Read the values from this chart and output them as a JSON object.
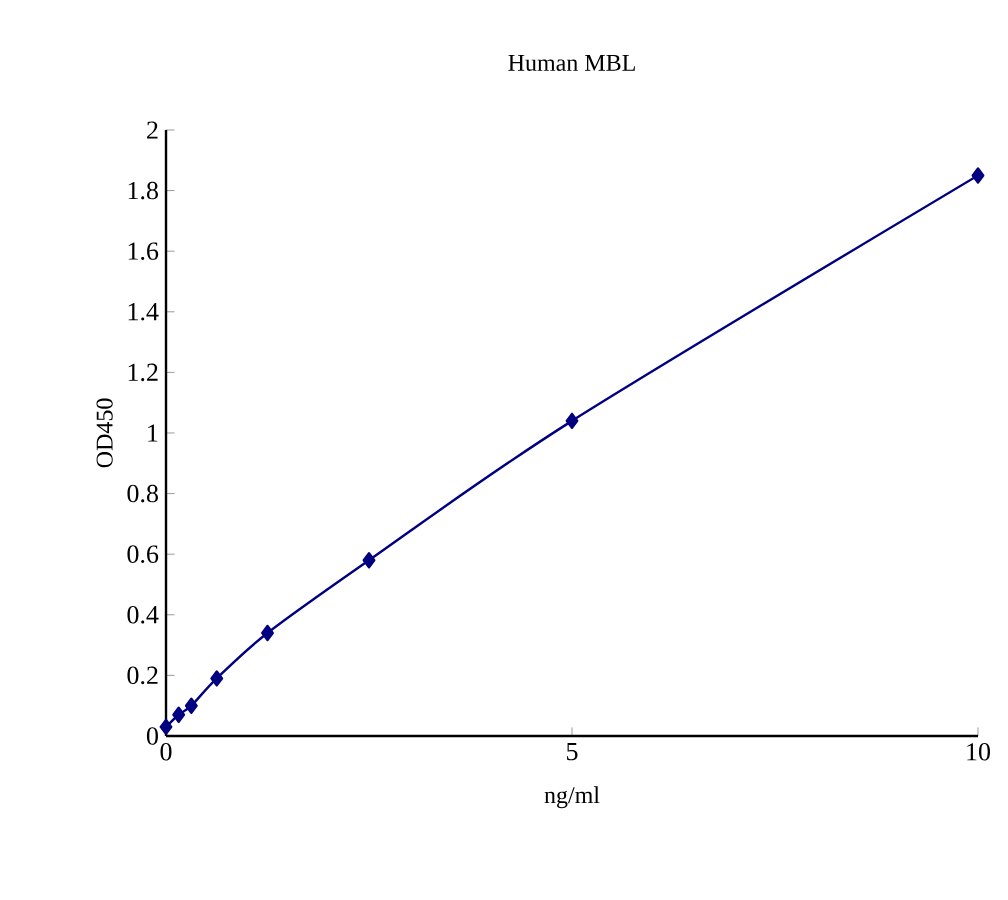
{
  "chart_data": {
    "type": "line",
    "title": "Human MBL",
    "xlabel": "ng/ml",
    "ylabel": "OD450",
    "x": [
      0,
      0.156,
      0.312,
      0.625,
      1.25,
      2.5,
      5,
      10
    ],
    "series": [
      {
        "color": "#000080",
        "values": [
          0.03,
          0.07,
          0.1,
          0.19,
          0.34,
          0.58,
          1.04,
          1.85
        ]
      }
    ],
    "xlim": [
      0,
      10
    ],
    "xticks": [
      0,
      5,
      10
    ],
    "ylim": [
      0,
      2
    ],
    "yticks": [
      0,
      0.2,
      0.4,
      0.6,
      0.8,
      1,
      1.2,
      1.4,
      1.6,
      1.8,
      2
    ],
    "marker": "diamond",
    "line_style": "solid",
    "grid": false
  }
}
